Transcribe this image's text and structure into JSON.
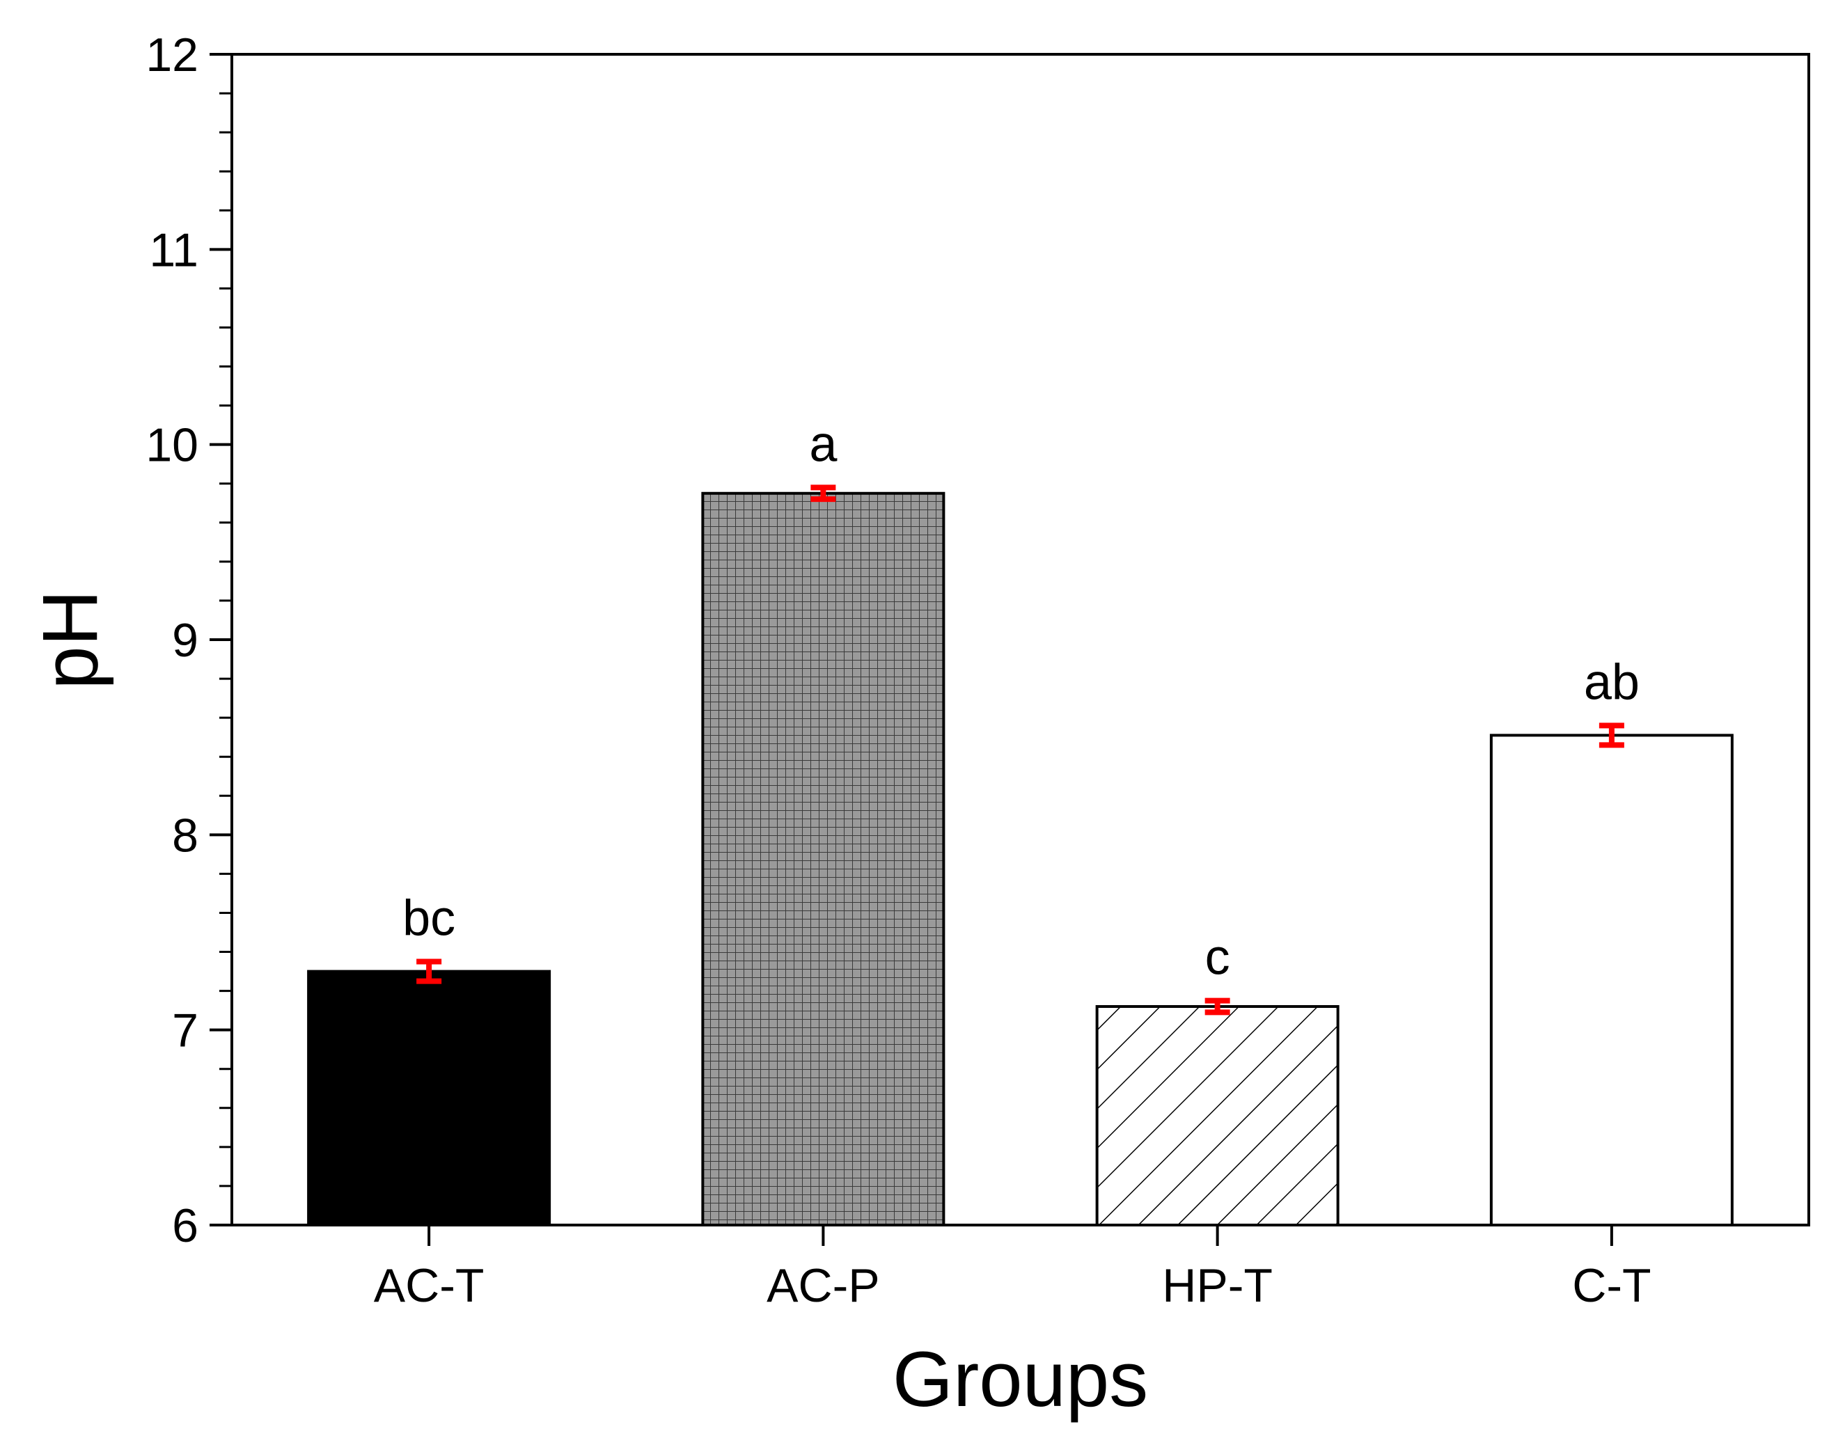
{
  "chart_data": {
    "type": "bar",
    "title": "",
    "xlabel": "Groups",
    "ylabel": "pH",
    "ylim": [
      6,
      12
    ],
    "yticks": [
      6,
      7,
      8,
      9,
      10,
      11,
      12
    ],
    "categories": [
      "AC-T",
      "AC-P",
      "HP-T",
      "C-T"
    ],
    "values": [
      7.3,
      9.75,
      7.12,
      8.51
    ],
    "errors": [
      0.05,
      0.03,
      0.03,
      0.05
    ],
    "significance": [
      "bc",
      "a",
      "c",
      "ab"
    ],
    "bar_styles": [
      "solid-black",
      "grid-gray",
      "hatch-diagonal",
      "empty-white"
    ],
    "error_bar_color": "#ff0000",
    "grid": false
  }
}
